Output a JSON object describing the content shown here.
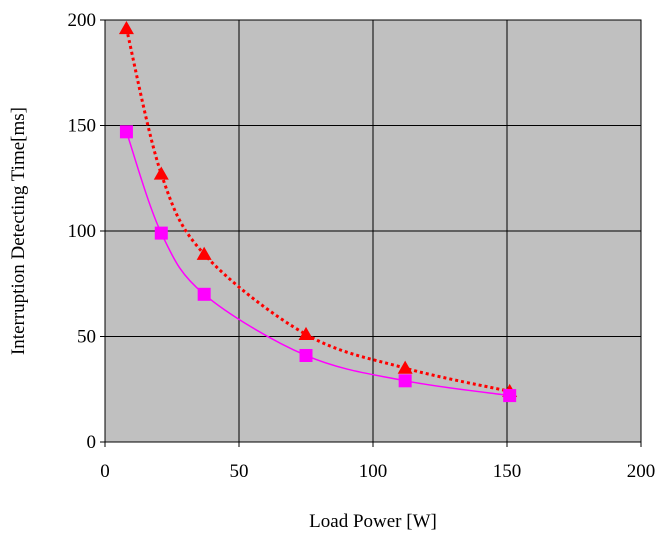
{
  "chart_data": {
    "type": "line",
    "title": "",
    "xlabel": "Load Power [W]",
    "ylabel": "Interruption Detecting Time[ms]",
    "xlim": [
      0,
      200
    ],
    "ylim": [
      0,
      200
    ],
    "xticks": [
      0,
      50,
      100,
      150,
      200
    ],
    "yticks": [
      0,
      50,
      100,
      150,
      200
    ],
    "x_tick_labels": [
      "0",
      "50",
      "100",
      "150",
      "200"
    ],
    "y_tick_labels": [
      "0",
      "50",
      "100",
      "150",
      "200"
    ],
    "grid": true,
    "legend": "none",
    "plot_background": "#c0c0c0",
    "series": [
      {
        "marker": "triangle",
        "color": "#ff0000",
        "line_style": "dotted",
        "x": [
          8,
          21,
          37,
          75,
          112,
          151
        ],
        "y": [
          196,
          127,
          89,
          51,
          35,
          24
        ]
      },
      {
        "marker": "square",
        "color": "#ff00ff",
        "line_style": "solid",
        "x": [
          8,
          21,
          37,
          75,
          112,
          151
        ],
        "y": [
          147,
          99,
          70,
          41,
          29,
          22
        ]
      }
    ]
  }
}
